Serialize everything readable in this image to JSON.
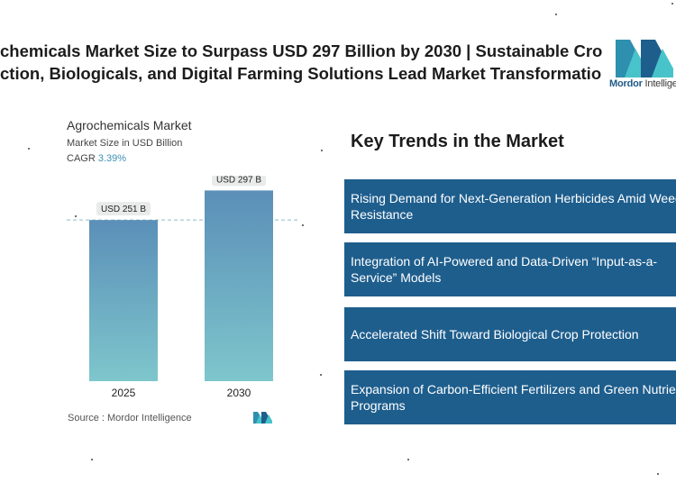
{
  "headline": {
    "line1": "chemicals Market Size to Surpass USD 297 Billion by 2030 | Sustainable Crop",
    "line2": "ction, Biologicals, and Digital Farming Solutions Lead Market Transformation"
  },
  "brand": {
    "name_bold": "Mordor",
    "name_rest": " Intelligence",
    "logo_icon": "mordor-intelligence-logo"
  },
  "chart_data": {
    "type": "bar",
    "title": "Agrochemicals Market",
    "subtitle": "Market Size in USD Billion",
    "cagr_label": "CAGR",
    "cagr_value": "3.39%",
    "categories": [
      "2025",
      "2030"
    ],
    "values": [
      251,
      297
    ],
    "data_labels": [
      "USD 251 B",
      "USD 297 B"
    ],
    "ylim": [
      0,
      320
    ],
    "reference_line": 251,
    "colors": {
      "bar_top": "#5b8fb8",
      "bar_bottom": "#7ec6cc",
      "label_bg": "#e9eaea",
      "reference": "#8fbfc6"
    },
    "source": "Source :  Mordor Intelligence"
  },
  "trends": {
    "title": "Key Trends in the Market",
    "items": [
      "Rising Demand for Next-Generation Herbicides Amid Weed Resistance",
      "Integration of AI-Powered and Data-Driven “Input-as-a-Service” Models",
      "Accelerated Shift Toward Biological Crop Protection",
      "Expansion of Carbon-Efficient Fertilizers and Green Nutrient Programs"
    ]
  }
}
